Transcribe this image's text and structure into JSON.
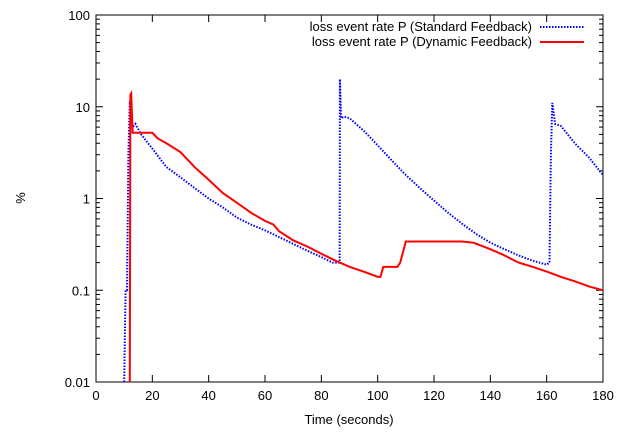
{
  "chart_data": {
    "type": "line",
    "xlabel": "Time (seconds)",
    "ylabel": "%",
    "xlim": [
      0,
      180
    ],
    "ylim": [
      0.01,
      100
    ],
    "yscale": "log",
    "grid": false,
    "legend_position": "top-right",
    "x_ticks": [
      {
        "value": 0,
        "label": "0"
      },
      {
        "value": 20,
        "label": "20"
      },
      {
        "value": 40,
        "label": "40"
      },
      {
        "value": 60,
        "label": "60"
      },
      {
        "value": 80,
        "label": "80"
      },
      {
        "value": 100,
        "label": "100"
      },
      {
        "value": 120,
        "label": "120"
      },
      {
        "value": 140,
        "label": "140"
      },
      {
        "value": 160,
        "label": "160"
      },
      {
        "value": 180,
        "label": "180"
      }
    ],
    "y_ticks": [
      {
        "value": 0.01,
        "label": "0.01"
      },
      {
        "value": 0.1,
        "label": "0.1"
      },
      {
        "value": 1,
        "label": "1"
      },
      {
        "value": 10,
        "label": "10"
      },
      {
        "value": 100,
        "label": "100"
      }
    ],
    "series": [
      {
        "name": "loss event rate P (Standard Feedback)",
        "color": "#0000ff",
        "style": "dotted",
        "x": [
          10,
          10.5,
          11,
          11.5,
          12,
          12.5,
          13,
          14,
          16,
          20,
          25,
          30,
          35,
          40,
          45,
          50,
          55,
          60,
          65,
          70,
          75,
          80,
          84,
          86.5,
          86.6,
          87,
          88,
          90,
          95,
          100,
          105,
          110,
          115,
          120,
          125,
          130,
          135,
          140,
          145,
          150,
          155,
          160,
          161,
          161.5,
          162,
          163,
          165,
          170,
          175,
          180
        ],
        "y": [
          0.01,
          0.1,
          0.1,
          3.0,
          11.5,
          8.5,
          6.0,
          6.5,
          5.0,
          3.5,
          2.2,
          1.7,
          1.3,
          1.0,
          0.8,
          0.62,
          0.52,
          0.45,
          0.38,
          0.32,
          0.27,
          0.23,
          0.2,
          0.2,
          20,
          7.5,
          7.8,
          7.5,
          5.5,
          3.8,
          2.6,
          1.8,
          1.3,
          0.95,
          0.7,
          0.53,
          0.41,
          0.33,
          0.28,
          0.24,
          0.21,
          0.19,
          0.2,
          3.0,
          11,
          6.5,
          6.2,
          4.0,
          2.8,
          1.8
        ]
      },
      {
        "name": "loss event rate P (Dynamic Feedback)",
        "color": "#ff0000",
        "style": "solid",
        "x": [
          12,
          12.2,
          12.5,
          13,
          14,
          20,
          22,
          25,
          28,
          30,
          35,
          40,
          45,
          50,
          55,
          60,
          63,
          65,
          70,
          75,
          80,
          85,
          90,
          95,
          100,
          101,
          102,
          105,
          107,
          108,
          110,
          120,
          130,
          134,
          140,
          145,
          150,
          155,
          160,
          165,
          170,
          175,
          180
        ],
        "y": [
          0.01,
          13.5,
          14,
          5.2,
          5.2,
          5.2,
          4.5,
          4.0,
          3.5,
          3.2,
          2.2,
          1.6,
          1.15,
          0.9,
          0.7,
          0.57,
          0.52,
          0.44,
          0.35,
          0.3,
          0.25,
          0.21,
          0.18,
          0.16,
          0.14,
          0.14,
          0.18,
          0.18,
          0.18,
          0.2,
          0.34,
          0.34,
          0.34,
          0.33,
          0.28,
          0.24,
          0.2,
          0.18,
          0.16,
          0.14,
          0.125,
          0.11,
          0.1
        ]
      }
    ]
  }
}
